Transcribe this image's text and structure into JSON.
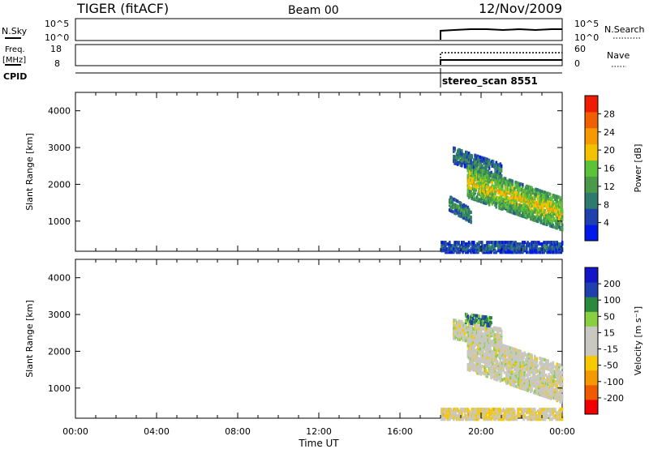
{
  "header": {
    "station": "TIGER (fitACF)",
    "beam": "Beam 00",
    "date": "12/Nov/2009"
  },
  "panels": {
    "nsky": {
      "label": "N.Sky",
      "ticks": [
        "10^5",
        "10^0"
      ]
    },
    "nsearch": {
      "label": "N.Search",
      "ticks": [
        "10^5",
        "10^0"
      ]
    },
    "freq": {
      "label_line1": "Freq.",
      "label_line2": "[MHz]",
      "ticks": [
        "18",
        "8"
      ]
    },
    "nave": {
      "label": "Nave",
      "ticks": [
        "60",
        "0"
      ]
    },
    "cpid": {
      "label": "CPID",
      "program": "stereo_scan 8551"
    }
  },
  "colors": {
    "power": [
      "#0018e8",
      "#2040b0",
      "#2e7a6e",
      "#4a9a4a",
      "#5cc23a",
      "#f2c200",
      "#f59a00",
      "#f06000",
      "#ee1c00"
    ],
    "velocity": [
      "#f00000",
      "#f05a00",
      "#f49a00",
      "#f8c800",
      "#c8c8c0",
      "#c8c8c0",
      "#88d040",
      "#2a8a3c",
      "#2040b0",
      "#1414c8"
    ]
  },
  "chart_data": [
    {
      "type": "heatmap",
      "name": "power",
      "ylabel": "Slant Range [km]",
      "yticks": [
        "4000",
        "3000",
        "2000",
        "1000"
      ],
      "ylim": [
        180,
        4500
      ],
      "xlim_hours": [
        0,
        24
      ],
      "colorbar": {
        "label": "Power [dB]",
        "ticks": [
          "28",
          "24",
          "20",
          "16",
          "12",
          "8",
          "4"
        ],
        "range": [
          0,
          32
        ]
      },
      "echo_bands": [
        {
          "h_start": 18.6,
          "h_end": 21.0,
          "range_center": 2800,
          "range_end": 2350,
          "thickness": 220,
          "value": 10
        },
        {
          "h_start": 19.3,
          "h_end": 24.0,
          "range_center": 2100,
          "range_end": 1200,
          "thickness": 450,
          "value": 20
        },
        {
          "h_start": 18.4,
          "h_end": 19.5,
          "range_center": 1500,
          "range_end": 1150,
          "thickness": 200,
          "value": 12
        },
        {
          "h_start": 18.0,
          "h_end": 24.0,
          "range_center": 300,
          "range_end": 300,
          "thickness": 150,
          "value": 8
        }
      ]
    },
    {
      "type": "heatmap",
      "name": "velocity",
      "ylabel": "Slant Range [km]",
      "yticks": [
        "4000",
        "3000",
        "2000",
        "1000"
      ],
      "ylim": [
        180,
        4500
      ],
      "xlim_hours": [
        0,
        24
      ],
      "xlabel": "Time UT",
      "xticks": [
        "00:00",
        "04:00",
        "08:00",
        "12:00",
        "16:00",
        "20:00",
        "00:00"
      ],
      "colorbar": {
        "label": "Velocity [m s⁻¹]",
        "ticks": [
          "200",
          "100",
          "50",
          "15",
          "-15",
          "-50",
          "-100",
          "-200"
        ],
        "range": [
          -250,
          250
        ]
      },
      "echo_bands": [
        {
          "h_start": 18.6,
          "h_end": 21.0,
          "range_center": 2600,
          "range_end": 2350,
          "thickness": 250,
          "value": 0
        },
        {
          "h_start": 19.3,
          "h_end": 24.0,
          "range_center": 2000,
          "range_end": 1100,
          "thickness": 500,
          "value": 0
        },
        {
          "h_start": 19.2,
          "h_end": 20.5,
          "range_center": 2900,
          "range_end": 2800,
          "thickness": 120,
          "value": 120
        },
        {
          "h_start": 18.0,
          "h_end": 24.0,
          "range_center": 300,
          "range_end": 300,
          "thickness": 150,
          "value": -40
        }
      ]
    }
  ]
}
